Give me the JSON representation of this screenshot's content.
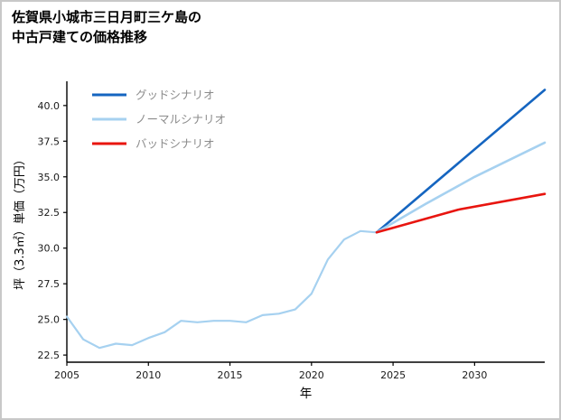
{
  "title": {
    "line1": "佐賀県小城市三日月町三ケ島の",
    "line2": "中古戸建ての価格推移"
  },
  "chart_data": {
    "type": "line",
    "title": "佐賀県小城市三日月町三ケ島の中古戸建ての価格推移",
    "xlabel": "年",
    "ylabel": "坪（3.3㎡）単価（万円）",
    "xlim": [
      2005,
      2034.3
    ],
    "ylim": [
      22.0,
      41.7
    ],
    "xticks": [
      2005,
      2010,
      2015,
      2020,
      2025,
      2030
    ],
    "yticks": [
      22.5,
      25.0,
      27.5,
      30.0,
      32.5,
      35.0,
      37.5,
      40.0
    ],
    "grid": false,
    "legend": {
      "position": "upper-left",
      "items": [
        {
          "label": "グッドシナリオ",
          "color": "#1565c0"
        },
        {
          "label": "ノーマルシナリオ",
          "color": "#a6d1f0"
        },
        {
          "label": "バッドシナリオ",
          "color": "#e8150f"
        }
      ]
    },
    "series": [
      {
        "id": "historical",
        "color": "#a6d1f0",
        "width": 2.2,
        "x": [
          2005,
          2006,
          2007,
          2008,
          2009,
          2010,
          2011,
          2012,
          2013,
          2014,
          2015,
          2016,
          2017,
          2018,
          2019,
          2020,
          2021,
          2022,
          2023,
          2024
        ],
        "y": [
          25.2,
          23.6,
          23.0,
          23.3,
          23.2,
          23.7,
          24.1,
          24.9,
          24.8,
          24.9,
          24.9,
          24.8,
          25.3,
          25.4,
          25.7,
          26.8,
          29.2,
          30.6,
          31.2,
          31.1
        ]
      },
      {
        "id": "good",
        "name": "グッドシナリオ",
        "color": "#1565c0",
        "width": 2.6,
        "x": [
          2024,
          2034.3
        ],
        "y": [
          31.1,
          41.1
        ]
      },
      {
        "id": "normal",
        "name": "ノーマルシナリオ",
        "color": "#a6d1f0",
        "width": 2.6,
        "x": [
          2024,
          2027,
          2030,
          2034.3
        ],
        "y": [
          31.1,
          33.1,
          35.0,
          37.4
        ]
      },
      {
        "id": "bad",
        "name": "バッドシナリオ",
        "color": "#e8150f",
        "width": 2.6,
        "x": [
          2024,
          2029,
          2034.3
        ],
        "y": [
          31.1,
          32.7,
          33.8
        ]
      }
    ]
  }
}
